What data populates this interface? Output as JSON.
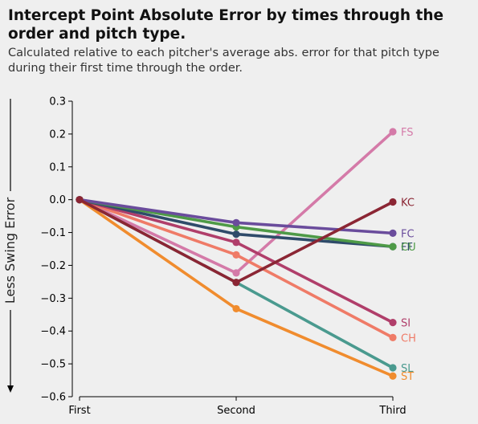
{
  "title": "Intercept Point Absolute Error by times through the order and pitch type.",
  "subtitle": "Calculated relative to each pitcher's average abs. error for that pitch type during their first time through the order.",
  "chart_data": {
    "type": "line",
    "categories": [
      "First",
      "Second",
      "Third"
    ],
    "ylabel": "Less Swing Error",
    "ylim": [
      -0.6,
      0.3
    ],
    "yticks": [
      -0.6,
      -0.5,
      -0.4,
      -0.3,
      -0.2,
      -0.1,
      0.0,
      0.1,
      0.2,
      0.3
    ],
    "yticklabels": [
      "−0.6",
      "−0.5",
      "−0.4",
      "−0.3",
      "−0.2",
      "−0.1",
      "0.0",
      "0.1",
      "0.2",
      "0.3"
    ],
    "grid": false,
    "legend": "end-of-line labels",
    "series": [
      {
        "name": "FS",
        "color": "#d47aa8",
        "values": [
          0.0,
          -0.223,
          0.207
        ]
      },
      {
        "name": "SL",
        "color": "#4a9a8f",
        "values": [
          0.0,
          -0.252,
          -0.512
        ]
      },
      {
        "name": "ST",
        "color": "#f08c2e",
        "values": [
          0.0,
          -0.332,
          -0.537
        ]
      },
      {
        "name": "CH",
        "color": "#ef7b67",
        "values": [
          0.0,
          -0.168,
          -0.42
        ]
      },
      {
        "name": "SI",
        "color": "#b03e6a",
        "values": [
          0.0,
          -0.13,
          -0.374
        ]
      },
      {
        "name": "FF",
        "color": "#2f4b6a",
        "values": [
          0.0,
          -0.105,
          -0.143
        ]
      },
      {
        "name": "CU",
        "color": "#4e9a47",
        "values": [
          0.0,
          -0.083,
          -0.143
        ]
      },
      {
        "name": "FC",
        "color": "#6a4c9c",
        "values": [
          0.0,
          -0.07,
          -0.102
        ]
      },
      {
        "name": "KC",
        "color": "#8b2634",
        "values": [
          0.0,
          -0.252,
          -0.007
        ]
      }
    ]
  }
}
